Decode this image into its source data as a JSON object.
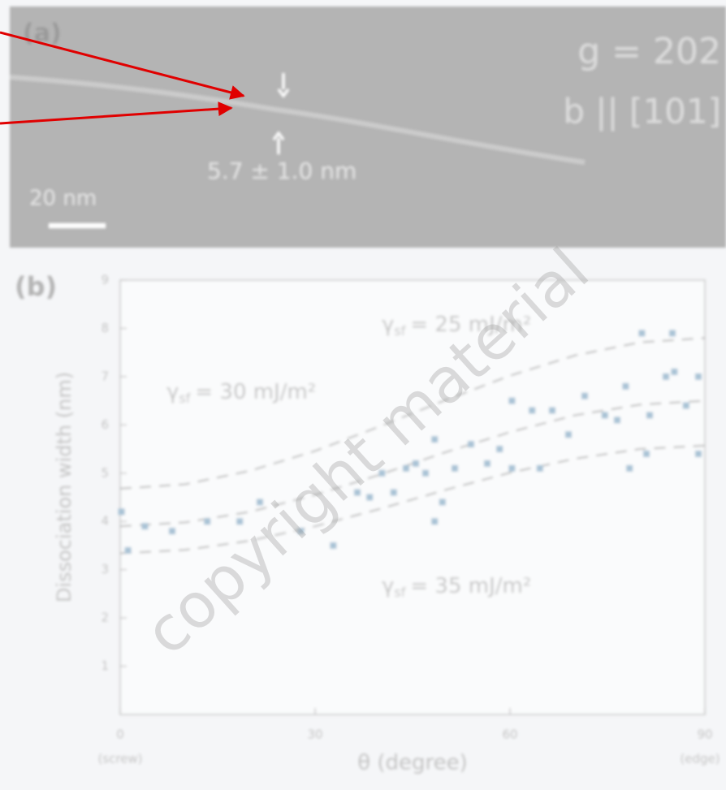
{
  "panel_a": {
    "label": "(a)",
    "g_vector": "g = 202",
    "burgers": "b || [101]",
    "width": "5.7 ± 1.0 nm",
    "scale_bar": "20 nm"
  },
  "chart_data": {
    "type": "scatter",
    "label": "(b)",
    "xlabel": "θ (degree)",
    "ylabel": "Dissociation width (nm)",
    "xlim": [
      0,
      90
    ],
    "ylim": [
      0,
      9
    ],
    "xticks": [
      0,
      30,
      60,
      90
    ],
    "yticks": [
      1,
      2,
      3,
      4,
      5,
      6,
      7,
      8,
      9
    ],
    "x_end_labels": {
      "left": "(screw)",
      "right": "(edge)"
    },
    "points": {
      "color": "#a9c3d6",
      "x": [
        0.2,
        1.2,
        3.8,
        8,
        13.4,
        18.4,
        21.5,
        27.8,
        32.8,
        36.5,
        38.4,
        40.3,
        42.1,
        44,
        45.5,
        47,
        48.4,
        49.6,
        48.4,
        51.5,
        54,
        56.5,
        58.4,
        60.3,
        60.3,
        63.4,
        64.6,
        66.5,
        69,
        71.5,
        74.6,
        76.5,
        77.8,
        78.4,
        80.3,
        81,
        81.5,
        84,
        85,
        85.3,
        87.1,
        89,
        89
      ],
      "y": [
        4.2,
        3.4,
        3.9,
        3.8,
        4.0,
        4.0,
        4.4,
        3.8,
        3.5,
        4.6,
        4.5,
        5.0,
        4.6,
        5.1,
        5.2,
        5.0,
        5.7,
        4.4,
        4.0,
        5.1,
        5.6,
        5.2,
        5.5,
        5.1,
        6.5,
        6.3,
        5.1,
        6.3,
        5.8,
        6.6,
        6.2,
        6.1,
        6.8,
        5.1,
        7.9,
        5.4,
        6.2,
        7.0,
        7.9,
        7.1,
        6.4,
        7.0,
        5.4
      ]
    },
    "curve_color": "#b9b9b9",
    "curve_x": [
      0,
      10,
      20,
      30,
      40,
      50,
      60,
      70,
      80,
      90
    ],
    "curves": [
      {
        "symbol": "γ",
        "subscript": "sf",
        "text": "= 25 mJ/m²",
        "values": [
          4.68,
          4.77,
          5.05,
          5.46,
          5.97,
          6.51,
          7.02,
          7.44,
          7.71,
          7.8
        ]
      },
      {
        "symbol": "γ",
        "subscript": "sf",
        "text": "= 30 mJ/m²",
        "values": [
          3.9,
          3.98,
          4.2,
          4.55,
          4.97,
          5.43,
          5.85,
          6.2,
          6.42,
          6.5
        ]
      },
      {
        "symbol": "γ",
        "subscript": "sf",
        "text": "= 35 mJ/m²",
        "values": [
          3.34,
          3.41,
          3.6,
          3.9,
          4.26,
          4.65,
          5.01,
          5.3,
          5.5,
          5.57
        ]
      }
    ]
  },
  "watermark": "copyright material"
}
